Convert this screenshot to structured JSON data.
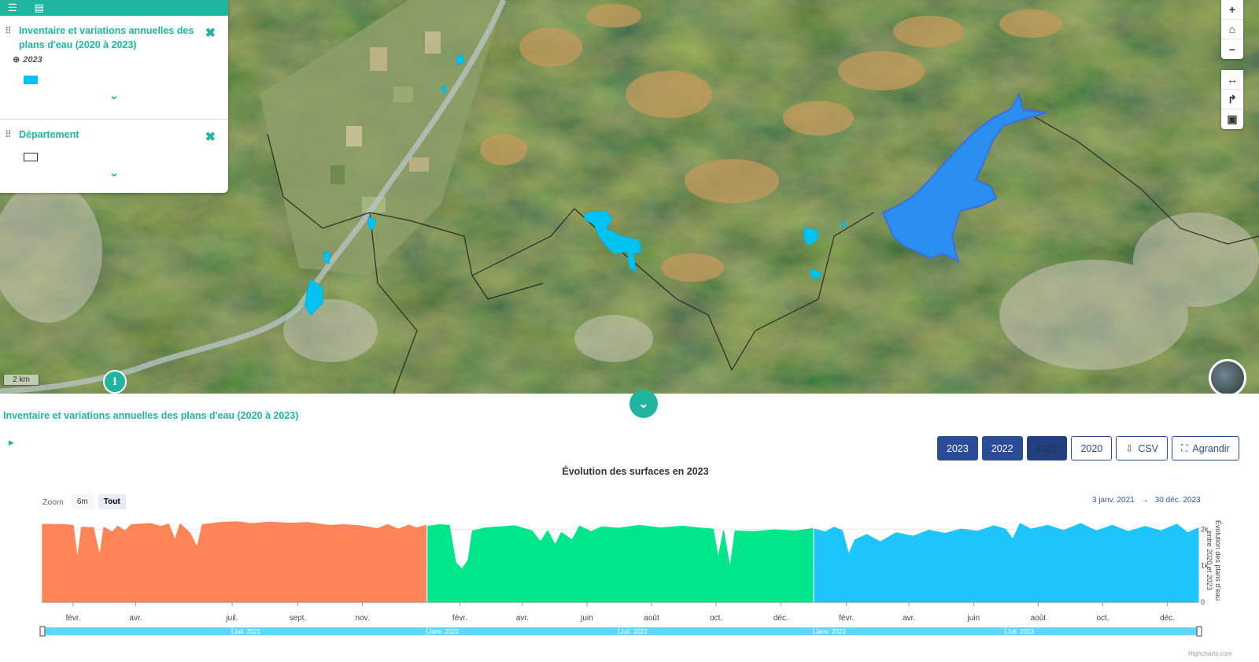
{
  "layer_panel": {
    "toolbar": {
      "list_icon": "list-icon",
      "table_icon": "table-icon"
    },
    "layers": [
      {
        "title": "Inventaire et variations annuelles des plans d'eau (2020 à 2023)",
        "year": "2023",
        "legend_color": "#00c3f0"
      },
      {
        "title": "Département",
        "legend_color": "#ffffff"
      }
    ]
  },
  "map": {
    "scale_label": "2 km",
    "controls": [
      "zoom-in",
      "home",
      "zoom-out",
      "measure",
      "share",
      "print-image"
    ]
  },
  "bottom_panel": {
    "title": "Inventaire et variations annuelles des plans d'eau (2020 à 2023)",
    "toolbar": {
      "years": [
        "2023",
        "2022",
        "2021",
        "2020"
      ],
      "active_year": "2021",
      "csv_label": "CSV",
      "expand_label": "Agrandir"
    },
    "chart_title": "Évolution des surfaces en 2023",
    "zoom": {
      "label": "Zoom",
      "options": [
        "6m",
        "Tout"
      ],
      "selected": "Tout"
    },
    "date_range": {
      "from": "3 janv. 2021",
      "arrow": "→",
      "to": "30 déc. 2023"
    },
    "credits": "Highcharts.com"
  },
  "chart_data": {
    "type": "area",
    "title": "Évolution des surfaces en 2023",
    "ylabel": "Évolution des plans d'eau entre 2020 et 2023",
    "ylim": [
      0,
      2200
    ],
    "yticks": [
      "0",
      "1k",
      "2k"
    ],
    "x_tick_labels": [
      "févr.",
      "avr.",
      "juil.",
      "sept.",
      "nov.",
      "févr.",
      "avr.",
      "juin",
      "août",
      "oct.",
      "déc.",
      "févr.",
      "avr.",
      "juin",
      "août",
      "oct.",
      "déc."
    ],
    "navigator_labels": [
      "Juil. 2021",
      "Janv. 2022",
      "Juil. 2022",
      "Janv. 2023",
      "Juil. 2023"
    ],
    "series": [
      {
        "year": "2021",
        "color": "#ff8559",
        "points": [
          [
            "2021-01-03",
            2130
          ],
          [
            "2021-01-25",
            2120
          ],
          [
            "2021-02-01",
            2100
          ],
          [
            "2021-02-05",
            1150
          ],
          [
            "2021-02-09",
            2050
          ],
          [
            "2021-02-20",
            2040
          ],
          [
            "2021-02-26",
            1250
          ],
          [
            "2021-03-02",
            2050
          ],
          [
            "2021-03-10",
            1920
          ],
          [
            "2021-03-15",
            2080
          ],
          [
            "2021-03-22",
            1950
          ],
          [
            "2021-03-28",
            2120
          ],
          [
            "2021-04-15",
            2150
          ],
          [
            "2021-04-25",
            2070
          ],
          [
            "2021-05-02",
            2140
          ],
          [
            "2021-05-08",
            1700
          ],
          [
            "2021-05-13",
            2140
          ],
          [
            "2021-05-22",
            1900
          ],
          [
            "2021-05-29",
            1500
          ],
          [
            "2021-06-03",
            2120
          ],
          [
            "2021-06-20",
            2180
          ],
          [
            "2021-07-05",
            2200
          ],
          [
            "2021-07-20",
            2150
          ],
          [
            "2021-08-05",
            2190
          ],
          [
            "2021-08-25",
            2160
          ],
          [
            "2021-09-10",
            2180
          ],
          [
            "2021-09-30",
            2100
          ],
          [
            "2021-10-15",
            2120
          ],
          [
            "2021-10-30",
            2090
          ],
          [
            "2021-11-15",
            2010
          ],
          [
            "2021-11-25",
            2120
          ],
          [
            "2021-12-05",
            2000
          ],
          [
            "2021-12-15",
            2110
          ],
          [
            "2021-12-22",
            2030
          ],
          [
            "2021-12-31",
            2100
          ]
        ]
      },
      {
        "year": "2022",
        "color": "#00e68a",
        "points": [
          [
            "2022-01-02",
            2080
          ],
          [
            "2022-01-12",
            2120
          ],
          [
            "2022-01-22",
            2100
          ],
          [
            "2022-01-28",
            1080
          ],
          [
            "2022-02-03",
            900
          ],
          [
            "2022-02-09",
            1150
          ],
          [
            "2022-02-13",
            1950
          ],
          [
            "2022-02-25",
            2030
          ],
          [
            "2022-03-10",
            2060
          ],
          [
            "2022-03-25",
            2090
          ],
          [
            "2022-04-10",
            1950
          ],
          [
            "2022-04-18",
            1650
          ],
          [
            "2022-04-25",
            1950
          ],
          [
            "2022-05-02",
            1560
          ],
          [
            "2022-05-08",
            1900
          ],
          [
            "2022-05-18",
            1700
          ],
          [
            "2022-05-25",
            2080
          ],
          [
            "2022-06-05",
            1930
          ],
          [
            "2022-06-15",
            2060
          ],
          [
            "2022-07-01",
            2020
          ],
          [
            "2022-07-20",
            2100
          ],
          [
            "2022-08-10",
            2030
          ],
          [
            "2022-08-30",
            2080
          ],
          [
            "2022-09-15",
            2030
          ],
          [
            "2022-09-28",
            2000
          ],
          [
            "2022-10-03",
            1200
          ],
          [
            "2022-10-08",
            1950
          ],
          [
            "2022-10-14",
            900
          ],
          [
            "2022-10-19",
            1950
          ],
          [
            "2022-11-05",
            1930
          ],
          [
            "2022-11-25",
            1980
          ],
          [
            "2022-12-15",
            1950
          ],
          [
            "2022-12-31",
            2010
          ]
        ]
      },
      {
        "year": "2023",
        "color": "#1ec5fb",
        "points": [
          [
            "2023-01-02",
            2000
          ],
          [
            "2023-01-12",
            1920
          ],
          [
            "2023-01-20",
            2050
          ],
          [
            "2023-01-28",
            1960
          ],
          [
            "2023-02-03",
            1300
          ],
          [
            "2023-02-09",
            1700
          ],
          [
            "2023-02-20",
            1850
          ],
          [
            "2023-03-05",
            1650
          ],
          [
            "2023-03-20",
            1900
          ],
          [
            "2023-04-05",
            1800
          ],
          [
            "2023-04-20",
            1970
          ],
          [
            "2023-05-05",
            1880
          ],
          [
            "2023-05-20",
            2000
          ],
          [
            "2023-06-05",
            1940
          ],
          [
            "2023-06-20",
            2090
          ],
          [
            "2023-07-01",
            2000
          ],
          [
            "2023-07-08",
            1720
          ],
          [
            "2023-07-15",
            2150
          ],
          [
            "2023-07-25",
            2000
          ],
          [
            "2023-08-10",
            2100
          ],
          [
            "2023-08-25",
            1960
          ],
          [
            "2023-09-10",
            2150
          ],
          [
            "2023-09-25",
            1950
          ],
          [
            "2023-10-10",
            2100
          ],
          [
            "2023-10-25",
            1930
          ],
          [
            "2023-11-10",
            2070
          ],
          [
            "2023-11-25",
            1950
          ],
          [
            "2023-12-10",
            2130
          ],
          [
            "2023-12-20",
            1900
          ],
          [
            "2023-12-30",
            2030
          ]
        ]
      }
    ]
  }
}
